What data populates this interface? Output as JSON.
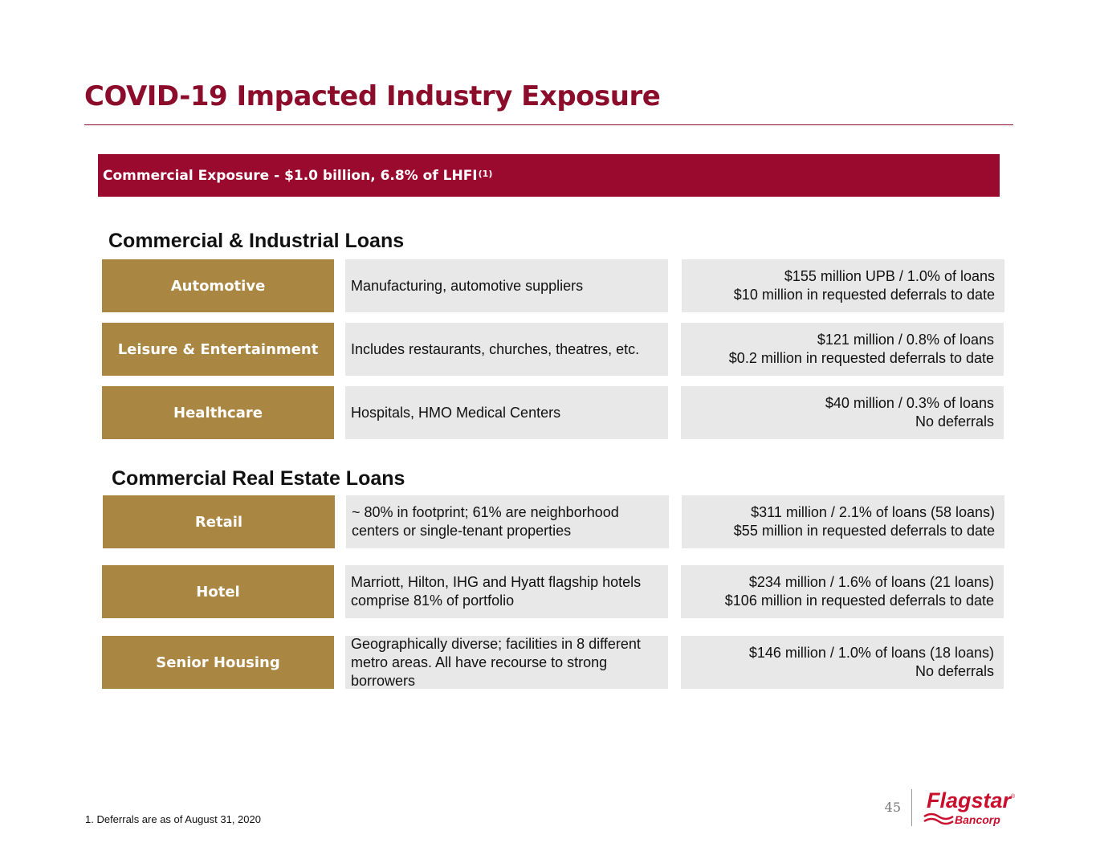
{
  "title": "COVID-19 Impacted Industry Exposure",
  "banner": {
    "text": "Commercial Exposure - $1.0 billion, 6.8% of LHFI",
    "footnote_ref": "(1)"
  },
  "sections": {
    "ci": {
      "heading": "Commercial & Industrial Loans",
      "rows": [
        {
          "category": "Automotive",
          "description": "Manufacturing, automotive suppliers",
          "stat_line1": "$155 million UPB / 1.0% of loans",
          "stat_line2": "$10 million in requested deferrals to date"
        },
        {
          "category": "Leisure & Entertainment",
          "description": "Includes restaurants, churches, theatres, etc.",
          "stat_line1": "$121 million / 0.8% of loans",
          "stat_line2": "$0.2 million in requested deferrals to date"
        },
        {
          "category": "Healthcare",
          "description": "Hospitals, HMO Medical Centers",
          "stat_line1": "$40 million / 0.3% of loans",
          "stat_line2": "No deferrals"
        }
      ]
    },
    "cre": {
      "heading": "Commercial Real Estate Loans",
      "rows": [
        {
          "category": "Retail",
          "description": "~ 80% in footprint; 61% are neighborhood centers or single-tenant properties",
          "stat_line1": "$311 million / 2.1% of loans (58 loans)",
          "stat_line2": "$55 million in requested deferrals to date"
        },
        {
          "category": "Hotel",
          "description": "Marriott, Hilton, IHG and Hyatt flagship hotels comprise 81% of portfolio",
          "stat_line1": "$234 million / 1.6% of loans (21 loans)",
          "stat_line2": "$106 million in requested deferrals to date"
        },
        {
          "category": "Senior Housing",
          "description": "Geographically diverse; facilities in 8 different metro areas. All have recourse to strong borrowers",
          "stat_line1": "$146 million / 1.0% of loans (18 loans)",
          "stat_line2": "No deferrals"
        }
      ]
    }
  },
  "footnote": "1. Deferrals are as of August 31, 2020",
  "page_number": "45",
  "logo": {
    "name": "Flagstar",
    "registered": "®",
    "subtitle": "Bancorp"
  },
  "colors": {
    "brand_red": "#9a0a2e",
    "title_red": "#8b0d2b",
    "category_gold": "#a98641",
    "panel_gray": "#e8e8e8",
    "logo_red": "#c8102e"
  }
}
